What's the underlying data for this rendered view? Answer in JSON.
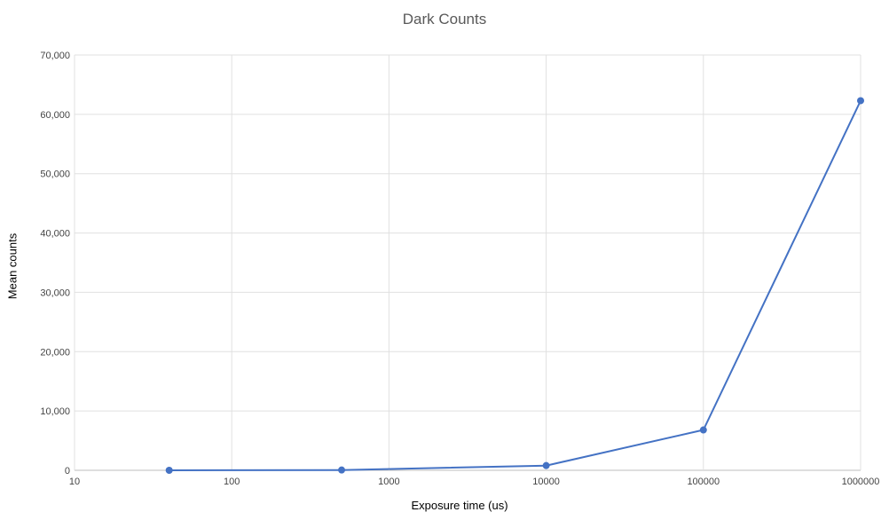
{
  "chart_data": {
    "type": "line",
    "title": "Dark Counts",
    "xlabel": "Exposure time (us)",
    "ylabel": "Mean counts",
    "x_scale": "log",
    "xlim": [
      10,
      1000000
    ],
    "ylim": [
      0,
      70000
    ],
    "x_ticks": [
      "10",
      "100",
      "1000",
      "10000",
      "100000",
      "1000000"
    ],
    "y_ticks": [
      "0",
      "10,000",
      "20,000",
      "30,000",
      "40,000",
      "50,000",
      "60,000",
      "70,000"
    ],
    "grid": true,
    "color": "#4472C4",
    "series": [
      {
        "x": [
          40,
          500,
          10000,
          100000,
          1000000
        ],
        "y": [
          0,
          50,
          800,
          6800,
          62300
        ]
      }
    ]
  }
}
